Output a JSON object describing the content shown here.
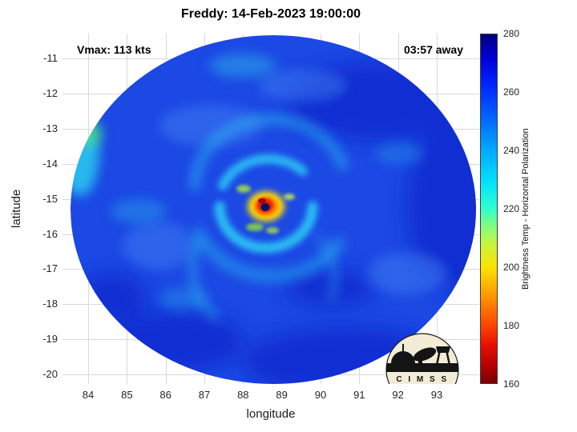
{
  "title": "Freddy: 14-Feb-2023 19:00:00",
  "overlay": {
    "vmax": "Vmax: 113 kts",
    "eta": "03:57 away"
  },
  "axes": {
    "xlabel": "longitude",
    "ylabel": "latitude",
    "xticks": [
      "84",
      "85",
      "86",
      "87",
      "88",
      "89",
      "90",
      "91",
      "92",
      "93"
    ],
    "yticks": [
      "-11",
      "-12",
      "-13",
      "-14",
      "-15",
      "-16",
      "-17",
      "-18",
      "-19",
      "-20"
    ]
  },
  "colorbar": {
    "label": "Brightness Temp - Horizontal Polarization",
    "ticks": [
      "280",
      "260",
      "240",
      "220",
      "200",
      "180",
      "160"
    ]
  },
  "logo": {
    "caption": "C I M S S"
  },
  "colors": {
    "background_cloud_blue": "#1c48e4",
    "cold_band_cyan": "#28c4f0",
    "eyewall_yellow": "#ffdf00",
    "eyewall_orange": "#ff9400",
    "eyewall_red": "#ec1800",
    "eye_navy": "#001468",
    "grid": "#d9d9d9"
  },
  "chart_data": {
    "type": "heatmap",
    "title": "Freddy: 14-Feb-2023 19:00:00",
    "xlabel": "longitude",
    "ylabel": "latitude",
    "xlim": [
      83.3,
      94.1
    ],
    "ylim": [
      -20.3,
      -10.3
    ],
    "xticks": [
      84,
      85,
      86,
      87,
      88,
      89,
      90,
      91,
      92,
      93
    ],
    "yticks": [
      -11,
      -12,
      -13,
      -14,
      -15,
      -16,
      -17,
      -18,
      -19,
      -20
    ],
    "grid": true,
    "colorbar": {
      "label": "Brightness Temp - Horizontal Polarization",
      "min": 160,
      "max": 280,
      "ticks": [
        160,
        180,
        200,
        220,
        240,
        260,
        280
      ],
      "colormap": "jet_reversed (280=dark blue, 160=dark red)"
    },
    "swath": {
      "shape": "circle",
      "center_lon": 88.8,
      "center_lat": -15.1,
      "radius_deg": 5.2
    },
    "storm": {
      "name": "Freddy",
      "datetime": "14-Feb-2023 19:00:00",
      "vmax_kts": 113,
      "time_offset_label": "03:57 away",
      "eye_center": {
        "lon": 88.6,
        "lat": -15.2
      },
      "features": [
        {
          "name": "eye",
          "approx_temp_K": 275,
          "appearance": "dark navy dot"
        },
        {
          "name": "eyewall ring",
          "approx_temp_K": 170,
          "appearance": "red core with orange-yellow ring"
        },
        {
          "name": "inner spiral rainbands",
          "approx_temp_K": 235,
          "appearance": "cyan curl around eyewall"
        },
        {
          "name": "western band",
          "approx_temp_K": 230,
          "appearance": "cyan/green patch at swath left edge"
        },
        {
          "name": "background cloud field",
          "approx_temp_K": 255,
          "appearance": "uniform blue"
        }
      ]
    },
    "credit": "CIMSS"
  }
}
